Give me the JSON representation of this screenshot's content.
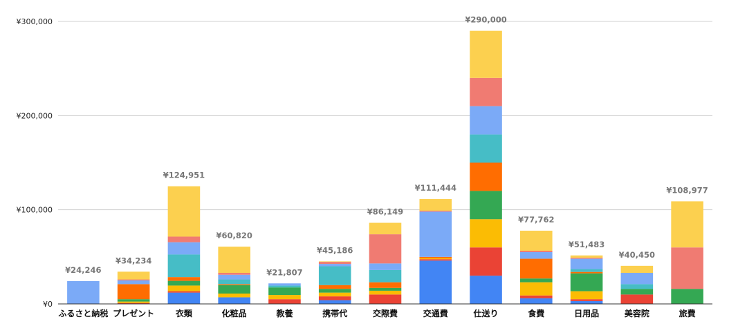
{
  "chart_data": {
    "type": "bar",
    "stacked": true,
    "title": "",
    "xlabel": "",
    "ylabel": "",
    "ylim": [
      0,
      300000
    ],
    "y_ticks": [
      0,
      100000,
      200000,
      300000
    ],
    "y_tick_labels": [
      "¥0",
      "¥100,000",
      "¥200,000",
      "¥300,000"
    ],
    "grid": true,
    "legend": "none",
    "categories": [
      "ふるさと納税",
      "プレゼント",
      "衣類",
      "化粧品",
      "教養",
      "携帯代",
      "交際費",
      "交通費",
      "仕送り",
      "食費",
      "日用品",
      "美容院",
      "旅費"
    ],
    "totals": [
      24246,
      34234,
      124951,
      60820,
      21807,
      45186,
      86149,
      111444,
      290000,
      77762,
      51483,
      40450,
      108977
    ],
    "total_labels": [
      "¥24,246",
      "¥34,234",
      "¥124,951",
      "¥60,820",
      "¥21,807",
      "¥45,186",
      "¥86,149",
      "¥111,444",
      "¥290,000",
      "¥77,762",
      "¥51,483",
      "¥40,450",
      "¥108,977"
    ],
    "series": [
      {
        "color": "#4285f4",
        "values": [
          0,
          0,
          12000,
          7000,
          0,
          4000,
          0,
          46000,
          30000,
          6000,
          3000,
          0,
          0
        ]
      },
      {
        "color": "#ea4335",
        "values": [
          0,
          1000,
          1500,
          0,
          5000,
          4000,
          10000,
          1500,
          30000,
          3000,
          2000,
          10000,
          0
        ]
      },
      {
        "color": "#fbbc04",
        "values": [
          0,
          1500,
          6000,
          4000,
          4500,
          4000,
          4000,
          1000,
          30000,
          14000,
          8500,
          0,
          0
        ]
      },
      {
        "color": "#34a853",
        "values": [
          0,
          2500,
          5000,
          9000,
          8000,
          4000,
          3000,
          0,
          30000,
          4000,
          19000,
          6000,
          16000
        ]
      },
      {
        "color": "#ff6d01",
        "values": [
          0,
          16000,
          4000,
          1000,
          0,
          4000,
          6000,
          1500,
          30000,
          21000,
          1500,
          0,
          0
        ]
      },
      {
        "color": "#46bdc6",
        "values": [
          0,
          0,
          24000,
          5000,
          2000,
          20000,
          13000,
          0,
          30000,
          0,
          3000,
          5000,
          0
        ]
      },
      {
        "color": "#7baaf7",
        "values": [
          24246,
          4000,
          13000,
          5000,
          2307,
          2500,
          7000,
          48000,
          30000,
          7000,
          11000,
          12000,
          0
        ]
      },
      {
        "color": "#f07b72",
        "values": [
          0,
          1000,
          6000,
          2000,
          0,
          2186,
          31000,
          1000,
          30000,
          1500,
          1000,
          0,
          44000
        ]
      },
      {
        "color": "#fcd04f",
        "values": [
          0,
          8234,
          53451,
          27820,
          0,
          500,
          12149,
          12444,
          50000,
          21262,
          2483,
          7450,
          48977
        ]
      }
    ]
  }
}
